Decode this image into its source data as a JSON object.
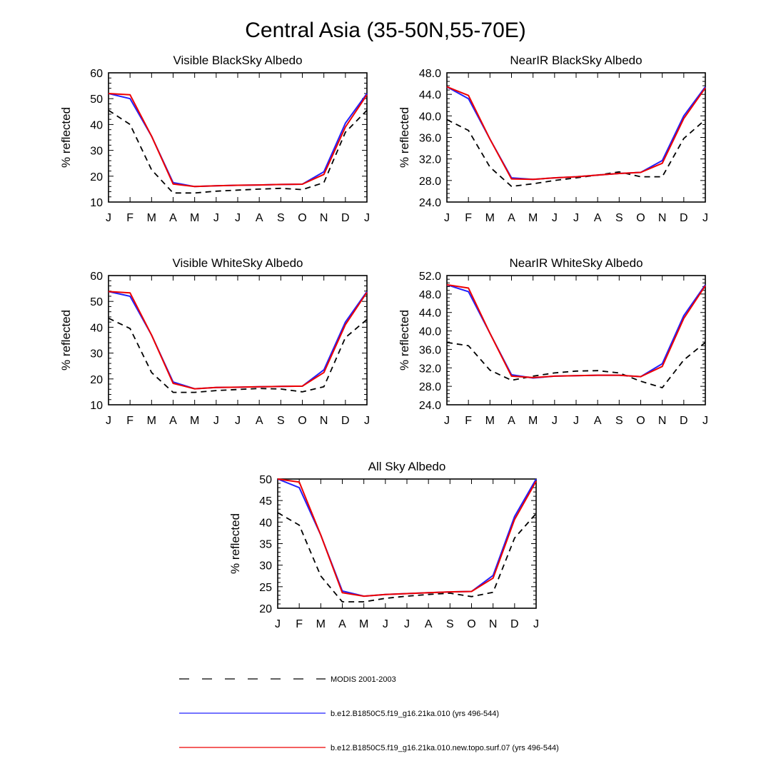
{
  "figure": {
    "title": "Central Asia (35-50N,55-70E)"
  },
  "chart_data": [
    {
      "type": "line",
      "title": "Visible BlackSky Albedo",
      "xlabel": "",
      "ylabel": "% reflected",
      "categories": [
        "J",
        "F",
        "M",
        "A",
        "M",
        "J",
        "J",
        "A",
        "S",
        "O",
        "N",
        "D",
        "J"
      ],
      "ylim": [
        10,
        60
      ],
      "yticks": [
        "10",
        "20",
        "30",
        "40",
        "50",
        "60"
      ],
      "series": [
        {
          "name": "MODIS 2001-2003",
          "color": "#000000",
          "dash": true,
          "values": [
            45.5,
            40.0,
            22.5,
            13.5,
            13.5,
            14.2,
            14.6,
            15.0,
            15.3,
            14.8,
            17.5,
            37.0,
            45.5
          ]
        },
        {
          "name": "b.e12.B1850C5.f19_g16.21ka.010 (yrs 496-544)",
          "color": "#2020ff",
          "dash": false,
          "values": [
            52.0,
            50.0,
            35.5,
            17.5,
            16.0,
            16.3,
            16.5,
            16.6,
            16.8,
            16.9,
            21.7,
            40.5,
            52.0
          ]
        },
        {
          "name": "b.e12.B1850C5.f19_g16.21ka.010.new.topo.surf.07 (yrs 496-544)",
          "color": "#ee0000",
          "dash": false,
          "values": [
            52.0,
            51.5,
            35.5,
            17.0,
            16.0,
            16.3,
            16.5,
            16.6,
            16.8,
            16.9,
            20.7,
            39.0,
            51.5
          ]
        }
      ]
    },
    {
      "type": "line",
      "title": "NearIR BlackSky Albedo",
      "xlabel": "",
      "ylabel": "% reflected",
      "categories": [
        "J",
        "F",
        "M",
        "A",
        "M",
        "J",
        "J",
        "A",
        "S",
        "O",
        "N",
        "D",
        "J"
      ],
      "ylim": [
        24,
        48
      ],
      "yticks": [
        "24.0",
        "28.0",
        "32.0",
        "36.0",
        "40.0",
        "44.0",
        "48.0"
      ],
      "series": [
        {
          "name": "MODIS 2001-2003",
          "color": "#000000",
          "dash": true,
          "values": [
            39.3,
            37.3,
            30.5,
            26.9,
            27.4,
            28.0,
            28.5,
            29.0,
            29.6,
            28.7,
            28.7,
            35.8,
            39.3
          ]
        },
        {
          "name": "b.e12.B1850C5.f19_g16.21ka.010 (yrs 496-544)",
          "color": "#2020ff",
          "dash": false,
          "values": [
            45.4,
            43.2,
            35.7,
            28.5,
            28.2,
            28.5,
            28.7,
            29.0,
            29.3,
            29.5,
            31.7,
            40.0,
            45.4
          ]
        },
        {
          "name": "b.e12.B1850C5.f19_g16.21ka.010.new.topo.surf.07 (yrs 496-544)",
          "color": "#ee0000",
          "dash": false,
          "values": [
            45.4,
            43.8,
            35.7,
            28.3,
            28.2,
            28.5,
            28.7,
            29.0,
            29.3,
            29.5,
            31.2,
            39.5,
            45.2
          ]
        }
      ]
    },
    {
      "type": "line",
      "title": "Visible WhiteSky Albedo",
      "xlabel": "",
      "ylabel": "% reflected",
      "categories": [
        "J",
        "F",
        "M",
        "A",
        "M",
        "J",
        "J",
        "A",
        "S",
        "O",
        "N",
        "D",
        "J"
      ],
      "ylim": [
        10,
        60
      ],
      "yticks": [
        "10",
        "20",
        "30",
        "40",
        "50",
        "60"
      ],
      "series": [
        {
          "name": "MODIS 2001-2003",
          "color": "#000000",
          "dash": true,
          "values": [
            43.5,
            39.5,
            22.5,
            14.8,
            14.8,
            15.5,
            15.9,
            16.3,
            16.1,
            15.0,
            17.0,
            36.0,
            43.0
          ]
        },
        {
          "name": "b.e12.B1850C5.f19_g16.21ka.010 (yrs 496-544)",
          "color": "#2020ff",
          "dash": false,
          "values": [
            53.8,
            52.0,
            37.0,
            18.8,
            16.2,
            16.7,
            16.8,
            17.0,
            17.1,
            17.2,
            23.5,
            42.0,
            53.8
          ]
        },
        {
          "name": "b.e12.B1850C5.f19_g16.21ka.010.new.topo.surf.07 (yrs 496-544)",
          "color": "#ee0000",
          "dash": false,
          "values": [
            53.8,
            53.3,
            37.0,
            18.3,
            16.2,
            16.7,
            16.8,
            17.0,
            17.1,
            17.2,
            22.5,
            41.0,
            53.5
          ]
        }
      ]
    },
    {
      "type": "line",
      "title": "NearIR WhiteSky Albedo",
      "xlabel": "",
      "ylabel": "% reflected",
      "categories": [
        "J",
        "F",
        "M",
        "A",
        "M",
        "J",
        "J",
        "A",
        "S",
        "O",
        "N",
        "D",
        "J"
      ],
      "ylim": [
        24,
        52
      ],
      "yticks": [
        "24.0",
        "28.0",
        "32.0",
        "36.0",
        "40.0",
        "44.0",
        "48.0",
        "52.0"
      ],
      "series": [
        {
          "name": "MODIS 2001-2003",
          "color": "#000000",
          "dash": true,
          "values": [
            37.5,
            36.8,
            31.5,
            29.3,
            30.2,
            30.9,
            31.3,
            31.4,
            30.9,
            29.1,
            27.7,
            33.7,
            37.5
          ]
        },
        {
          "name": "b.e12.B1850C5.f19_g16.21ka.010 (yrs 496-544)",
          "color": "#2020ff",
          "dash": false,
          "values": [
            50.0,
            48.5,
            39.5,
            30.5,
            29.8,
            30.2,
            30.3,
            30.4,
            30.4,
            30.1,
            32.9,
            43.3,
            50.0
          ]
        },
        {
          "name": "b.e12.B1850C5.f19_g16.21ka.010.new.topo.surf.07 (yrs 496-544)",
          "color": "#ee0000",
          "dash": false,
          "values": [
            50.0,
            49.3,
            39.5,
            30.2,
            29.9,
            30.2,
            30.3,
            30.4,
            30.4,
            30.1,
            32.3,
            42.7,
            49.8
          ]
        }
      ]
    },
    {
      "type": "line",
      "title": "All Sky Albedo",
      "xlabel": "",
      "ylabel": "% reflected",
      "categories": [
        "J",
        "F",
        "M",
        "A",
        "M",
        "J",
        "J",
        "A",
        "S",
        "O",
        "N",
        "D",
        "J"
      ],
      "ylim": [
        20,
        50
      ],
      "yticks": [
        "20",
        "25",
        "30",
        "35",
        "40",
        "45",
        "50"
      ],
      "series": [
        {
          "name": "MODIS 2001-2003",
          "color": "#000000",
          "dash": true,
          "values": [
            42.2,
            39.3,
            27.5,
            21.5,
            21.5,
            22.3,
            22.8,
            23.2,
            23.5,
            22.7,
            23.7,
            36.3,
            42.0
          ]
        },
        {
          "name": "b.e12.B1850C5.f19_g16.21ka.010 (yrs 496-544)",
          "color": "#2020ff",
          "dash": false,
          "values": [
            50.0,
            48.0,
            37.0,
            24.0,
            22.8,
            23.2,
            23.4,
            23.6,
            23.8,
            23.9,
            27.6,
            41.3,
            50.0
          ]
        },
        {
          "name": "b.e12.B1850C5.f19_g16.21ka.010.new.topo.surf.07 (yrs 496-544)",
          "color": "#ee0000",
          "dash": false,
          "values": [
            50.0,
            49.3,
            37.0,
            23.6,
            22.8,
            23.2,
            23.4,
            23.6,
            23.8,
            23.9,
            27.0,
            40.6,
            49.5
          ]
        }
      ]
    }
  ],
  "legend": {
    "placement": "bottom",
    "items": [
      {
        "label": "MODIS 2001-2003",
        "color": "#000000",
        "dash": true
      },
      {
        "label": "b.e12.B1850C5.f19_g16.21ka.010 (yrs 496-544)",
        "color": "#2020ff",
        "dash": false
      },
      {
        "label": "b.e12.B1850C5.f19_g16.21ka.010.new.topo.surf.07 (yrs 496-544)",
        "color": "#ee0000",
        "dash": false
      }
    ]
  }
}
